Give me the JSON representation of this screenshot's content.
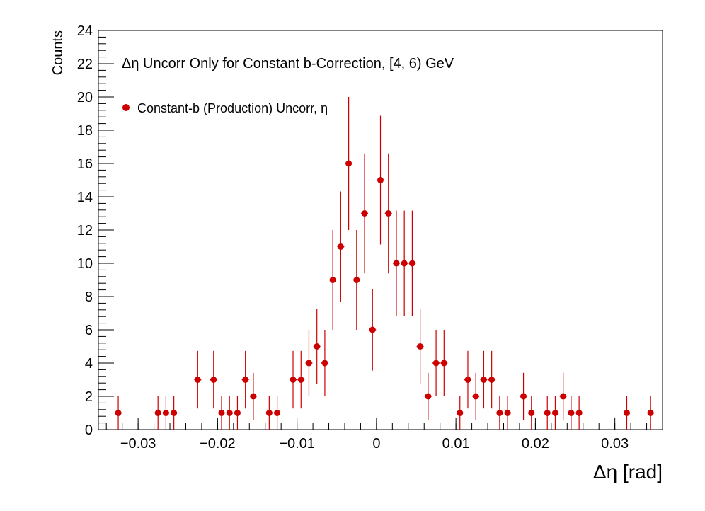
{
  "chart_data": {
    "type": "scatter",
    "title": "Δη Uncorr Only for Constant b-Correction, [4, 6) GeV",
    "xlabel": "Δη  [rad]",
    "ylabel": "Counts",
    "xlim": [
      -0.035,
      0.036
    ],
    "ylim": [
      0,
      24
    ],
    "x_ticks": [
      -0.03,
      -0.02,
      -0.01,
      0,
      0.01,
      0.02,
      0.03
    ],
    "x_tick_labels": [
      "−0.03",
      "−0.02",
      "−0.01",
      "0",
      "0.01",
      "0.02",
      "0.03"
    ],
    "y_ticks": [
      0,
      2,
      4,
      6,
      8,
      10,
      12,
      14,
      16,
      18,
      20,
      22,
      24
    ],
    "y_tick_labels": [
      "0",
      "2",
      "4",
      "6",
      "8",
      "10",
      "12",
      "14",
      "16",
      "18",
      "20",
      "22",
      "24"
    ],
    "legend_position": "top-left",
    "marker_color": "#cc0000",
    "series": [
      {
        "name": "Constant-b (Production) Uncorr, η",
        "points": [
          [
            -0.0325,
            1
          ],
          [
            -0.0275,
            1
          ],
          [
            -0.0265,
            1
          ],
          [
            -0.0255,
            1
          ],
          [
            -0.0225,
            3
          ],
          [
            -0.0205,
            3
          ],
          [
            -0.0195,
            1
          ],
          [
            -0.0185,
            1
          ],
          [
            -0.0175,
            1
          ],
          [
            -0.0165,
            3
          ],
          [
            -0.0155,
            2
          ],
          [
            -0.0135,
            1
          ],
          [
            -0.0125,
            1
          ],
          [
            -0.0105,
            3
          ],
          [
            -0.0095,
            3
          ],
          [
            -0.0085,
            4
          ],
          [
            -0.0075,
            5
          ],
          [
            -0.0065,
            4
          ],
          [
            -0.0055,
            9
          ],
          [
            -0.0045,
            11
          ],
          [
            -0.0035,
            16
          ],
          [
            -0.0025,
            9
          ],
          [
            -0.0015,
            13
          ],
          [
            -0.0005,
            6
          ],
          [
            0.0005,
            15
          ],
          [
            0.0015,
            13
          ],
          [
            0.0025,
            10
          ],
          [
            0.0035,
            10
          ],
          [
            0.0045,
            10
          ],
          [
            0.0055,
            5
          ],
          [
            0.0065,
            2
          ],
          [
            0.0075,
            4
          ],
          [
            0.0085,
            4
          ],
          [
            0.0105,
            1
          ],
          [
            0.0115,
            3
          ],
          [
            0.0125,
            2
          ],
          [
            0.0135,
            3
          ],
          [
            0.0145,
            3
          ],
          [
            0.0155,
            1
          ],
          [
            0.0165,
            1
          ],
          [
            0.0185,
            2
          ],
          [
            0.0195,
            1
          ],
          [
            0.0215,
            1
          ],
          [
            0.0225,
            1
          ],
          [
            0.0235,
            2
          ],
          [
            0.0245,
            1
          ],
          [
            0.0255,
            1
          ],
          [
            0.0315,
            1
          ],
          [
            0.0345,
            1
          ]
        ]
      }
    ]
  }
}
